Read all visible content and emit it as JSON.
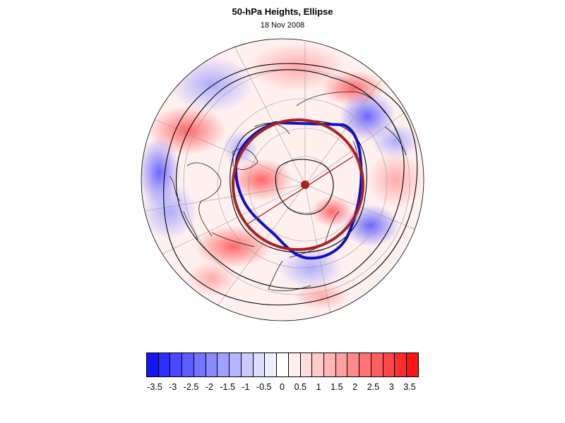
{
  "title": "50-hPa Heights, Ellipse",
  "subtitle": "18 Nov 2008",
  "map": {
    "projection": "orthographic-north-polar",
    "fill_field": "height-anomaly",
    "contour_color": "#000000",
    "ellipse_color": "#a52222",
    "vortex_edge_color": "#1010c8",
    "pole_marker_color": "#a52222"
  },
  "colorbar": {
    "colors": [
      "#1414ff",
      "#2e2eff",
      "#4848ff",
      "#5e5eff",
      "#7474ff",
      "#8a8aff",
      "#a0a0ff",
      "#b6b6ff",
      "#cacaff",
      "#ddddff",
      "#eeeeff",
      "#ffffff",
      "#ffeeee",
      "#ffdddd",
      "#ffcaca",
      "#ffb6b6",
      "#ffa0a0",
      "#ff8a8a",
      "#ff7474",
      "#ff5e5e",
      "#ff4848",
      "#ff2e2e",
      "#ff1414"
    ],
    "tick_labels": [
      "-3.5",
      "-3",
      "-2.5",
      "-2",
      "-1.5",
      "-1",
      "-0.5",
      "0",
      "0.5",
      "1",
      "1.5",
      "2",
      "2.5",
      "3",
      "3.5"
    ]
  }
}
